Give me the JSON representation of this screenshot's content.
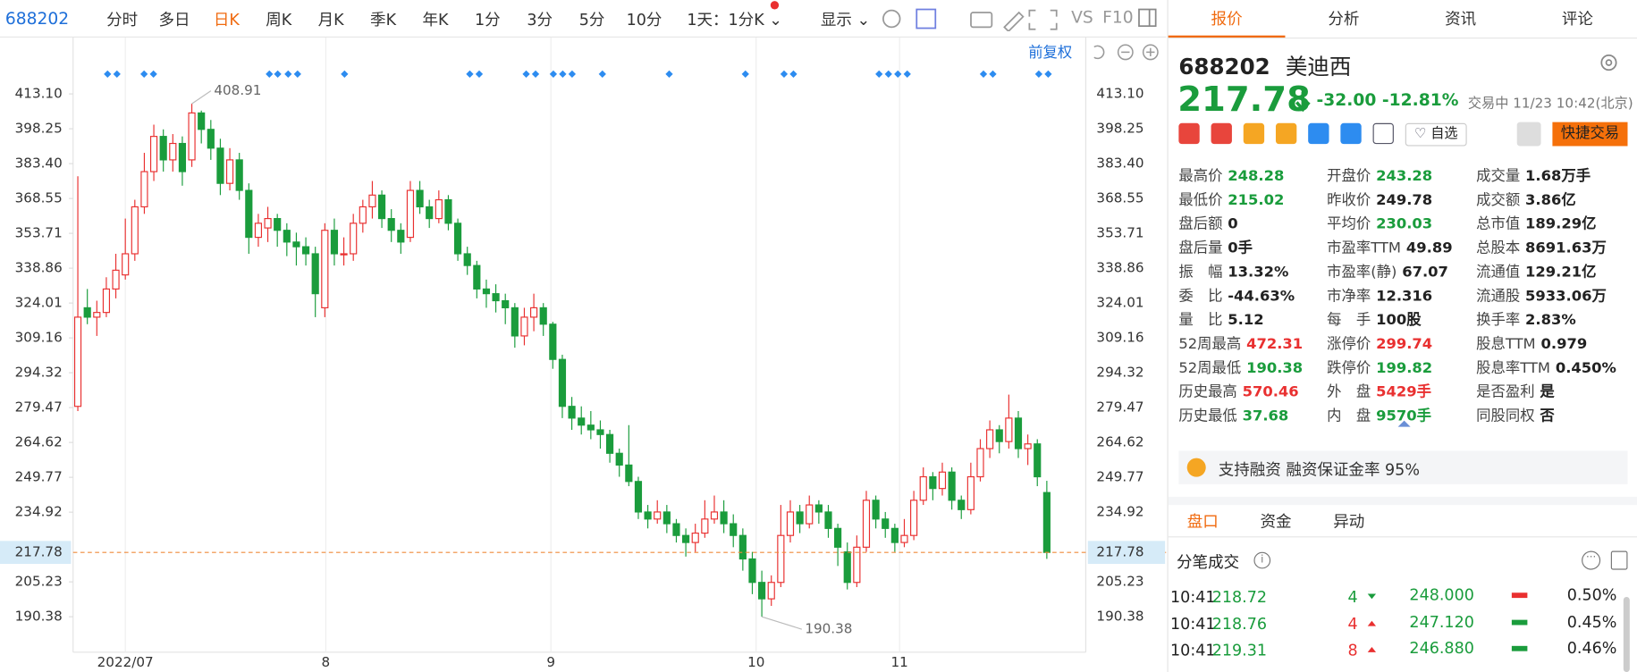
{
  "toolbar": {
    "code": "688202",
    "periods": [
      "分时",
      "多日",
      "日K",
      "周K",
      "月K",
      "季K",
      "年K",
      "1分",
      "3分",
      "5分",
      "10分"
    ],
    "active": 2,
    "interval": "1天：1分K",
    "display": "显示",
    "extras": [
      "VS",
      "F10"
    ]
  },
  "chart_data": {
    "type": "candlestick",
    "adjust": "前复权",
    "up_color": "#e93030",
    "down_color": "#1a9c3c",
    "price_line_color": "#f08a3a",
    "grid": true,
    "ylim": [
      175.27,
      435.33
    ],
    "yticks": [
      {
        "value": 413.1,
        "label": "413.10"
      },
      398.25,
      {
        "value": 383.4,
        "label": "383.40"
      },
      368.55,
      353.71,
      338.86,
      324.01,
      309.16,
      294.32,
      279.47,
      264.62,
      249.77,
      234.92,
      205.23,
      190.38
    ],
    "xlim": [
      -0.5,
      106.1
    ],
    "xticks": [
      {
        "value": 5,
        "label": "2022/07"
      },
      {
        "value": 26.1,
        "label": "8"
      },
      {
        "value": 49.8,
        "label": "9"
      },
      {
        "value": 71.4,
        "label": "10"
      },
      {
        "value": 86.5,
        "label": "11"
      }
    ],
    "candles": [
      [
        280,
        378,
        278,
        318
      ],
      [
        322,
        330,
        315,
        318
      ],
      [
        318,
        325,
        310,
        320
      ],
      [
        320,
        335,
        318,
        330
      ],
      [
        330,
        345,
        326,
        338
      ],
      [
        336,
        360,
        334,
        345
      ],
      [
        345,
        368,
        342,
        365
      ],
      [
        365,
        388,
        362,
        380
      ],
      [
        380,
        400,
        376,
        395
      ],
      [
        395,
        398,
        380,
        385
      ],
      [
        385,
        396,
        380,
        392
      ],
      [
        392,
        395,
        374,
        380
      ],
      [
        385,
        408.91,
        382,
        405
      ],
      [
        405,
        406,
        392,
        398
      ],
      [
        398,
        402,
        385,
        390
      ],
      [
        390,
        394,
        370,
        375
      ],
      [
        375,
        390,
        372,
        385
      ],
      [
        385,
        388,
        368,
        372
      ],
      [
        372,
        375,
        345,
        352
      ],
      [
        352,
        362,
        348,
        358
      ],
      [
        356,
        365,
        350,
        360
      ],
      [
        360,
        362,
        348,
        355
      ],
      [
        355,
        358,
        344,
        350
      ],
      [
        350,
        354,
        340,
        348
      ],
      [
        348,
        352,
        340,
        345
      ],
      [
        345,
        348,
        318,
        328
      ],
      [
        322,
        358,
        318,
        355
      ],
      [
        355,
        360,
        340,
        345
      ],
      [
        345,
        352,
        340,
        345
      ],
      [
        345,
        362,
        342,
        358
      ],
      [
        358,
        368,
        354,
        365
      ],
      [
        365,
        376,
        360,
        370
      ],
      [
        370,
        372,
        356,
        360
      ],
      [
        360,
        364,
        350,
        355
      ],
      [
        355,
        358,
        345,
        350
      ],
      [
        352,
        376,
        350,
        372
      ],
      [
        372,
        376,
        362,
        365
      ],
      [
        365,
        368,
        356,
        360
      ],
      [
        360,
        372,
        358,
        368
      ],
      [
        368,
        370,
        355,
        358
      ],
      [
        358,
        360,
        342,
        345
      ],
      [
        345,
        348,
        336,
        340
      ],
      [
        340,
        342,
        326,
        330
      ],
      [
        330,
        334,
        322,
        328
      ],
      [
        328,
        332,
        320,
        325
      ],
      [
        325,
        328,
        315,
        322
      ],
      [
        322,
        324,
        305,
        310
      ],
      [
        310,
        322,
        306,
        318
      ],
      [
        318,
        328,
        312,
        322
      ],
      [
        322,
        324,
        310,
        315
      ],
      [
        315,
        316,
        296,
        300
      ],
      [
        300,
        302,
        275,
        280
      ],
      [
        280,
        284,
        270,
        275
      ],
      [
        275,
        280,
        268,
        272
      ],
      [
        272,
        278,
        266,
        270
      ],
      [
        270,
        274,
        262,
        268
      ],
      [
        268,
        270,
        256,
        260
      ],
      [
        260,
        262,
        250,
        255
      ],
      [
        255,
        272,
        246,
        248
      ],
      [
        248,
        250,
        232,
        235
      ],
      [
        235,
        238,
        228,
        232
      ],
      [
        232,
        240,
        230,
        235
      ],
      [
        235,
        238,
        226,
        230
      ],
      [
        230,
        232,
        222,
        225
      ],
      [
        225,
        228,
        216,
        222
      ],
      [
        222,
        230,
        218,
        226
      ],
      [
        226,
        240,
        224,
        232
      ],
      [
        232,
        242,
        230,
        235
      ],
      [
        235,
        240,
        226,
        230
      ],
      [
        230,
        234,
        220,
        225
      ],
      [
        225,
        228,
        210,
        215
      ],
      [
        215,
        218,
        200,
        205
      ],
      [
        205,
        210,
        190.38,
        198
      ],
      [
        198,
        208,
        195,
        205
      ],
      [
        205,
        238,
        203,
        225
      ],
      [
        225,
        240,
        222,
        235
      ],
      [
        235,
        238,
        226,
        230
      ],
      [
        230,
        242,
        228,
        238
      ],
      [
        238,
        240,
        230,
        235
      ],
      [
        235,
        238,
        224,
        228
      ],
      [
        228,
        230,
        212,
        220
      ],
      [
        218,
        222,
        202,
        205
      ],
      [
        205,
        225,
        203,
        220
      ],
      [
        220,
        244,
        218,
        240
      ],
      [
        240,
        242,
        228,
        232
      ],
      [
        232,
        235,
        224,
        228
      ],
      [
        228,
        230,
        218,
        222
      ],
      [
        222,
        232,
        220,
        225
      ],
      [
        225,
        244,
        223,
        240
      ],
      [
        240,
        254,
        238,
        250
      ],
      [
        250,
        252,
        240,
        245
      ],
      [
        245,
        256,
        242,
        252
      ],
      [
        252,
        254,
        236,
        240
      ],
      [
        240,
        242,
        232,
        236
      ],
      [
        236,
        256,
        234,
        250
      ],
      [
        250,
        266,
        248,
        262
      ],
      [
        262,
        274,
        258,
        270
      ],
      [
        270,
        272,
        260,
        265
      ],
      [
        265,
        285,
        262,
        275
      ],
      [
        275,
        278,
        258,
        262
      ],
      [
        262,
        268,
        255,
        264
      ],
      [
        264,
        266,
        246,
        250
      ],
      [
        243.28,
        248.28,
        215.02,
        217.78
      ]
    ]
  },
  "panel": {
    "tabs": [
      "报价",
      "分析",
      "资讯",
      "评论"
    ],
    "active": 0,
    "code": "688202",
    "name": "美迪西",
    "price": "217.78",
    "change": "-32.00",
    "change_pct": "-12.81%",
    "status": "交易中 11/23 10:42(北京)",
    "watch": "自选",
    "trade": "快捷交易",
    "stats": [
      [
        {
          "label": "最高价",
          "value": "248.28",
          "color": "#1a9c3c"
        },
        {
          "label": "开盘价",
          "value": "243.28",
          "color": "#1a9c3c"
        },
        {
          "label": "成交量",
          "value": "1.68万手",
          "color": "#222"
        }
      ],
      [
        {
          "label": "最低价",
          "value": "215.02",
          "color": "#1a9c3c"
        },
        {
          "label": "昨收价",
          "value": "249.78",
          "color": "#222"
        },
        {
          "label": "成交额",
          "value": "3.86亿",
          "color": "#222"
        }
      ],
      [
        {
          "label": "盘后额",
          "value": "0",
          "color": "#222"
        },
        {
          "label": "平均价",
          "value": "230.03",
          "color": "#1a9c3c"
        },
        {
          "label": "总市值",
          "value": "189.29亿",
          "color": "#222"
        }
      ],
      [
        {
          "label": "盘后量",
          "value": "0手",
          "color": "#222"
        },
        {
          "label": "市盈率TTM",
          "value": "49.89",
          "color": "#222"
        },
        {
          "label": "总股本",
          "value": "8691.63万",
          "color": "#222"
        }
      ],
      [
        {
          "label": "振　幅",
          "value": "13.32%",
          "color": "#222"
        },
        {
          "label": "市盈率(静)",
          "value": "67.07",
          "color": "#222"
        },
        {
          "label": "流通值",
          "value": "129.21亿",
          "color": "#222"
        }
      ],
      [
        {
          "label": "委　比",
          "value": "-44.63%",
          "color": "#222"
        },
        {
          "label": "市净率",
          "value": "12.316",
          "color": "#222"
        },
        {
          "label": "流通股",
          "value": "5933.06万",
          "color": "#222"
        }
      ],
      [
        {
          "label": "量　比",
          "value": "5.12",
          "color": "#222"
        },
        {
          "label": "每　手",
          "value": "100股",
          "color": "#222"
        },
        {
          "label": "换手率",
          "value": "2.83%",
          "color": "#222"
        }
      ],
      [
        {
          "label": "52周最高",
          "value": "472.31",
          "color": "#e93030"
        },
        {
          "label": "涨停价",
          "value": "299.74",
          "color": "#e93030"
        },
        {
          "label": "股息TTM",
          "value": "0.979",
          "color": "#222"
        }
      ],
      [
        {
          "label": "52周最低",
          "value": "190.38",
          "color": "#1a9c3c"
        },
        {
          "label": "跌停价",
          "value": "199.82",
          "color": "#1a9c3c"
        },
        {
          "label": "股息率TTM",
          "value": "0.450%",
          "color": "#222"
        }
      ],
      [
        {
          "label": "历史最高",
          "value": "570.46",
          "color": "#e93030"
        },
        {
          "label": "外　盘",
          "value": "5429手",
          "color": "#e93030"
        },
        {
          "label": "是否盈利",
          "value": "是",
          "color": "#222"
        }
      ],
      [
        {
          "label": "历史最低",
          "value": "37.68",
          "color": "#1a9c3c"
        },
        {
          "label": "内　盘",
          "value": "9570手",
          "color": "#1a9c3c"
        },
        {
          "label": "同股同权",
          "value": "否",
          "color": "#222"
        }
      ]
    ],
    "margin": "支持融资 融资保证金率 95%",
    "subtabs": [
      "盘口",
      "资金",
      "异动"
    ],
    "trades_title": "分笔成交",
    "trades": [
      {
        "time": "10:41",
        "price": "218.72",
        "volume": "4",
        "dir": "down",
        "bid": "248.000",
        "pct": "0.50%"
      },
      {
        "time": "10:41",
        "price": "218.76",
        "volume": "4",
        "dir": "up",
        "bid": "247.120",
        "pct": "0.45%"
      },
      {
        "time": "10:41",
        "price": "219.31",
        "volume": "8",
        "dir": "up",
        "bid": "246.880",
        "pct": "0.46%"
      }
    ]
  }
}
